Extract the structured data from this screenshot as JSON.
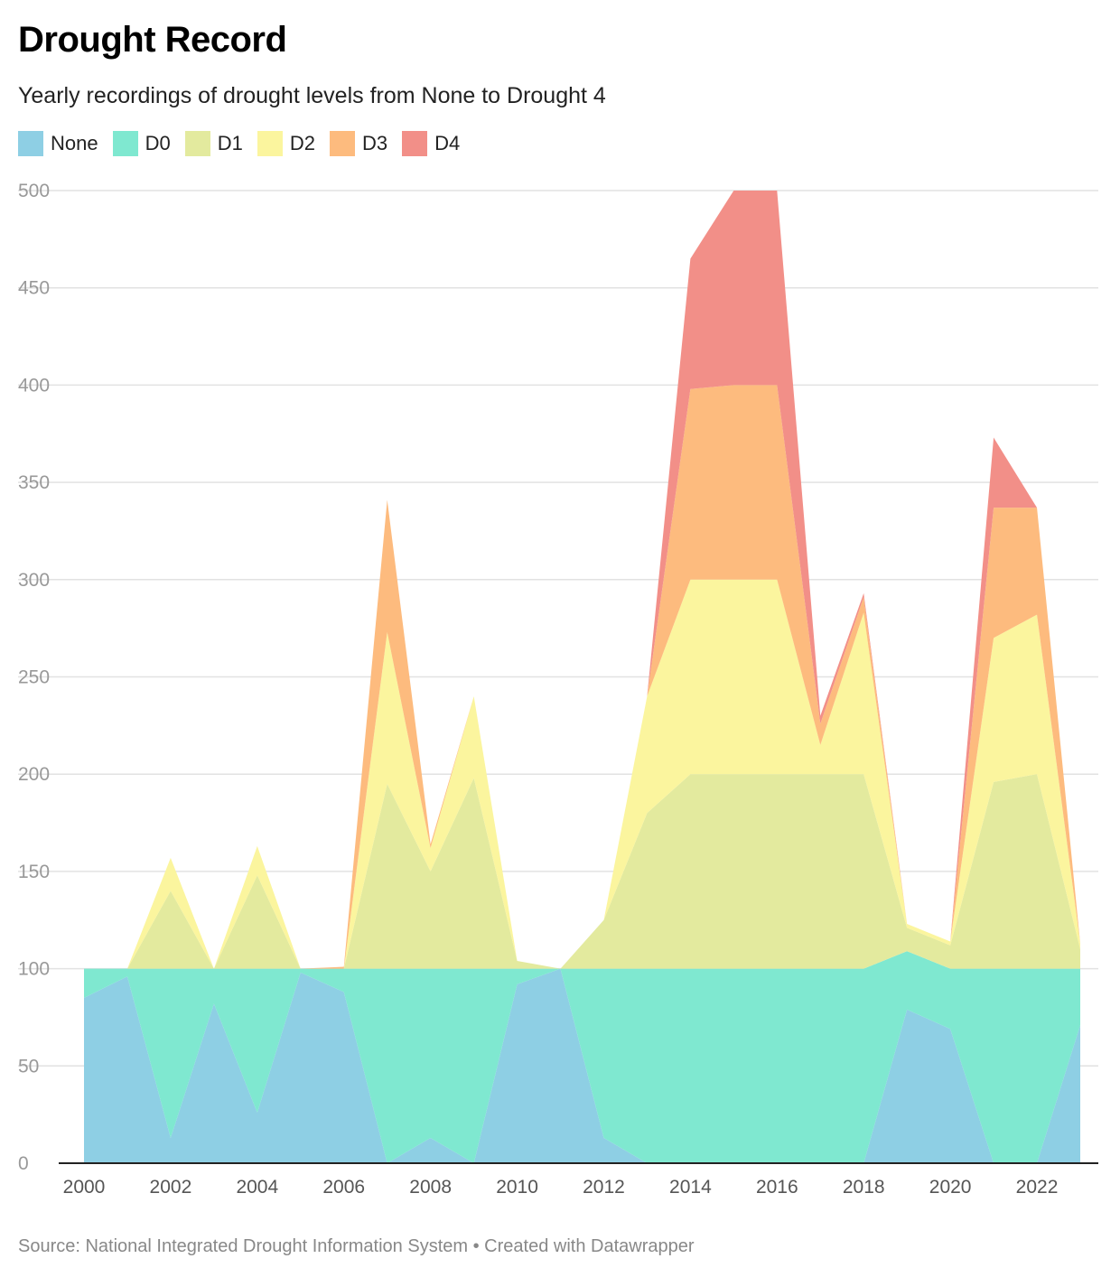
{
  "header": {
    "title": "Drought Record",
    "subtitle": "Yearly recordings of drought levels from None to Drought 4"
  },
  "footer": {
    "source_prefix": "Source: ",
    "source": "National Integrated Drought Information System",
    "separator": " • ",
    "credit": "Created with Datawrapper"
  },
  "chart_data": {
    "type": "area",
    "stacked": true,
    "title": "Drought Record",
    "subtitle": "Yearly recordings of drought levels from None to Drought 4",
    "xlabel": "",
    "ylabel": "",
    "ylim": [
      0,
      500
    ],
    "yticks": [
      0,
      50,
      100,
      150,
      200,
      250,
      300,
      350,
      400,
      450,
      500
    ],
    "xticks": [
      2000,
      2002,
      2004,
      2006,
      2008,
      2010,
      2012,
      2014,
      2016,
      2018,
      2020,
      2022
    ],
    "grid": true,
    "legend_position": "top-left",
    "x": [
      2000,
      2001,
      2002,
      2003,
      2004,
      2005,
      2006,
      2007,
      2008,
      2009,
      2010,
      2011,
      2012,
      2013,
      2014,
      2015,
      2016,
      2017,
      2018,
      2019,
      2020,
      2021,
      2022,
      2023
    ],
    "series": [
      {
        "name": "None",
        "color": "#8ecfe4",
        "values": [
          85,
          96,
          13,
          82,
          26,
          98,
          88,
          0,
          13,
          0,
          92,
          100,
          13,
          0,
          0,
          0,
          0,
          0,
          0,
          79,
          69,
          0,
          0,
          71
        ]
      },
      {
        "name": "D0",
        "color": "#7fe8d0",
        "values": [
          15,
          4,
          87,
          18,
          74,
          2,
          12,
          100,
          87,
          100,
          8,
          0,
          87,
          100,
          100,
          100,
          100,
          100,
          100,
          30,
          31,
          100,
          100,
          29
        ]
      },
      {
        "name": "D1",
        "color": "#e3ea9e",
        "values": [
          0,
          0,
          40,
          0,
          48,
          0,
          0,
          95,
          50,
          98,
          4,
          0,
          25,
          80,
          100,
          100,
          100,
          100,
          100,
          12,
          12,
          96,
          100,
          10
        ]
      },
      {
        "name": "D2",
        "color": "#fbf59e",
        "values": [
          0,
          0,
          17,
          0,
          15,
          0,
          0,
          78,
          12,
          42,
          0,
          0,
          0,
          60,
          100,
          100,
          100,
          15,
          83,
          2,
          2,
          74,
          82,
          3
        ]
      },
      {
        "name": "D3",
        "color": "#fdbb7e",
        "values": [
          0,
          0,
          0,
          0,
          0,
          0,
          1,
          68,
          2,
          0,
          0,
          0,
          0,
          0,
          98,
          100,
          100,
          11,
          8,
          0,
          0,
          67,
          55,
          0
        ]
      },
      {
        "name": "D4",
        "color": "#f28f88",
        "values": [
          0,
          0,
          0,
          0,
          0,
          0,
          0,
          0,
          0,
          0,
          0,
          0,
          0,
          0,
          67,
          100,
          100,
          4,
          2,
          0,
          0,
          36,
          0,
          0
        ]
      }
    ]
  }
}
